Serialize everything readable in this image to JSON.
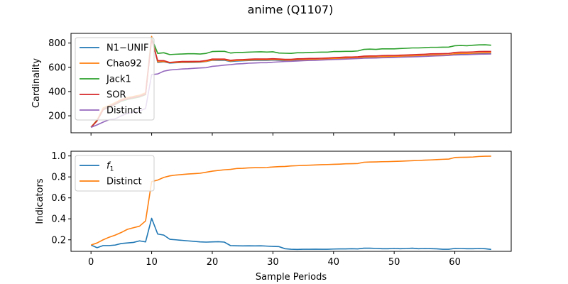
{
  "title": "anime (Q1107)",
  "chart_data": [
    {
      "type": "line",
      "ylabel": "Cardinality",
      "xlabel": "",
      "xlim": [
        -3.3,
        69.3
      ],
      "ylim": [
        60,
        880
      ],
      "xticks": [
        0,
        10,
        20,
        30,
        40,
        50,
        60
      ],
      "yticks": [
        200,
        400,
        600,
        800
      ],
      "show_xtick_labels": false,
      "grid": false,
      "legend": "top-left",
      "x": [
        0,
        1,
        2,
        3,
        4,
        5,
        6,
        7,
        8,
        9,
        10,
        11,
        12,
        13,
        14,
        15,
        16,
        17,
        18,
        19,
        20,
        21,
        22,
        23,
        24,
        25,
        26,
        27,
        28,
        29,
        30,
        31,
        32,
        33,
        34,
        35,
        36,
        37,
        38,
        39,
        40,
        41,
        42,
        43,
        44,
        45,
        46,
        47,
        48,
        49,
        50,
        51,
        52,
        53,
        54,
        55,
        56,
        57,
        58,
        59,
        60,
        61,
        62,
        63,
        64,
        65,
        66
      ],
      "series": [
        {
          "name": "N1−UNIF",
          "color": "#1f77b4",
          "values": [
            105,
            160,
            255,
            275,
            300,
            330,
            345,
            355,
            365,
            380,
            850,
            640,
            645,
            635,
            638,
            640,
            640,
            641,
            642,
            648,
            658,
            658,
            658,
            648,
            652,
            654,
            656,
            658,
            658,
            658,
            660,
            658,
            656,
            656,
            660,
            660,
            662,
            662,
            663,
            665,
            668,
            670,
            673,
            673,
            675,
            680,
            682,
            682,
            684,
            685,
            685,
            687,
            689,
            690,
            692,
            694,
            697,
            698,
            699,
            700,
            708,
            710,
            710,
            712,
            715,
            716,
            716
          ]
        },
        {
          "name": "Chao92",
          "color": "#ff7f0e",
          "values": [
            105,
            165,
            265,
            285,
            310,
            335,
            350,
            360,
            370,
            390,
            855,
            645,
            648,
            638,
            640,
            642,
            643,
            644,
            645,
            650,
            660,
            662,
            663,
            652,
            656,
            658,
            660,
            662,
            662,
            662,
            664,
            662,
            660,
            660,
            664,
            664,
            666,
            666,
            667,
            669,
            672,
            674,
            677,
            677,
            679,
            684,
            686,
            686,
            688,
            689,
            689,
            691,
            693,
            694,
            696,
            698,
            701,
            702,
            703,
            704,
            712,
            714,
            714,
            716,
            719,
            720,
            720
          ]
        },
        {
          "name": "Jack1",
          "color": "#2ca02c",
          "values": [
            105,
            160,
            250,
            270,
            295,
            320,
            335,
            345,
            355,
            375,
            840,
            715,
            720,
            705,
            708,
            710,
            712,
            712,
            710,
            715,
            730,
            732,
            732,
            718,
            722,
            723,
            725,
            727,
            728,
            726,
            728,
            718,
            716,
            715,
            720,
            720,
            722,
            724,
            725,
            725,
            730,
            730,
            732,
            732,
            735,
            748,
            750,
            748,
            752,
            752,
            752,
            755,
            757,
            760,
            760,
            762,
            765,
            765,
            766,
            767,
            778,
            780,
            778,
            782,
            785,
            786,
            782
          ]
        },
        {
          "name": "SOR",
          "color": "#d62728",
          "values": [
            105,
            158,
            250,
            272,
            298,
            325,
            340,
            350,
            360,
            378,
            830,
            655,
            655,
            640,
            645,
            648,
            648,
            649,
            650,
            656,
            668,
            668,
            668,
            658,
            662,
            664,
            667,
            669,
            669,
            669,
            671,
            669,
            666,
            666,
            670,
            671,
            673,
            673,
            675,
            677,
            680,
            682,
            685,
            685,
            687,
            692,
            694,
            694,
            697,
            698,
            698,
            700,
            702,
            704,
            706,
            708,
            711,
            712,
            713,
            714,
            723,
            725,
            725,
            727,
            730,
            731,
            731
          ]
        },
        {
          "name": "Distinct",
          "color": "#9467bd",
          "values": [
            105,
            125,
            148,
            168,
            175,
            200,
            220,
            230,
            240,
            260,
            540,
            545,
            568,
            578,
            582,
            586,
            588,
            592,
            595,
            597,
            608,
            612,
            618,
            622,
            628,
            630,
            634,
            636,
            638,
            638,
            642,
            645,
            648,
            650,
            652,
            655,
            657,
            658,
            660,
            662,
            664,
            666,
            668,
            670,
            672,
            675,
            676,
            677,
            679,
            680,
            681,
            683,
            685,
            686,
            688,
            690,
            692,
            694,
            696,
            698,
            702,
            703,
            704,
            706,
            708,
            709,
            710
          ]
        }
      ]
    },
    {
      "type": "line",
      "ylabel": "Indicators",
      "xlabel": "Sample Periods",
      "xlim": [
        -3.3,
        69.3
      ],
      "ylim": [
        0.09,
        1.045
      ],
      "xticks": [
        0,
        10,
        20,
        30,
        40,
        50,
        60
      ],
      "yticks": [
        0.2,
        0.4,
        0.6,
        0.8,
        1.0
      ],
      "ytick_labels": [
        "0.2",
        "0.4",
        "0.6",
        "0.8",
        "1.0"
      ],
      "show_xtick_labels": true,
      "grid": false,
      "legend": "top-left",
      "x": [
        0,
        1,
        2,
        3,
        4,
        5,
        6,
        7,
        8,
        9,
        10,
        11,
        12,
        13,
        14,
        15,
        16,
        17,
        18,
        19,
        20,
        21,
        22,
        23,
        24,
        25,
        26,
        27,
        28,
        29,
        30,
        31,
        32,
        33,
        34,
        35,
        36,
        37,
        38,
        39,
        40,
        41,
        42,
        43,
        44,
        45,
        46,
        47,
        48,
        49,
        50,
        51,
        52,
        53,
        54,
        55,
        56,
        57,
        58,
        59,
        60,
        61,
        62,
        63,
        64,
        65,
        66
      ],
      "series": [
        {
          "name": "f1",
          "name_base": "f",
          "name_sub": "1",
          "color": "#1f77b4",
          "values": [
            0.15,
            0.125,
            0.145,
            0.145,
            0.15,
            0.165,
            0.17,
            0.175,
            0.19,
            0.18,
            0.405,
            0.255,
            0.245,
            0.205,
            0.2,
            0.195,
            0.19,
            0.185,
            0.18,
            0.178,
            0.18,
            0.182,
            0.178,
            0.145,
            0.143,
            0.142,
            0.143,
            0.142,
            0.143,
            0.14,
            0.137,
            0.135,
            0.115,
            0.11,
            0.108,
            0.11,
            0.11,
            0.111,
            0.11,
            0.11,
            0.112,
            0.113,
            0.113,
            0.115,
            0.113,
            0.12,
            0.12,
            0.118,
            0.115,
            0.115,
            0.118,
            0.115,
            0.117,
            0.12,
            0.115,
            0.117,
            0.116,
            0.114,
            0.11,
            0.11,
            0.118,
            0.117,
            0.115,
            0.115,
            0.117,
            0.115,
            0.108
          ]
        },
        {
          "name": "Distinct",
          "color": "#ff7f0e",
          "values": [
            0.15,
            0.17,
            0.2,
            0.225,
            0.245,
            0.27,
            0.3,
            0.315,
            0.33,
            0.38,
            0.755,
            0.77,
            0.795,
            0.81,
            0.818,
            0.823,
            0.828,
            0.831,
            0.835,
            0.845,
            0.855,
            0.862,
            0.868,
            0.872,
            0.88,
            0.882,
            0.886,
            0.888,
            0.888,
            0.89,
            0.895,
            0.898,
            0.9,
            0.905,
            0.907,
            0.91,
            0.912,
            0.914,
            0.917,
            0.918,
            0.92,
            0.922,
            0.925,
            0.926,
            0.928,
            0.94,
            0.942,
            0.943,
            0.945,
            0.946,
            0.948,
            0.95,
            0.952,
            0.955,
            0.957,
            0.96,
            0.962,
            0.965,
            0.968,
            0.97,
            0.985,
            0.987,
            0.988,
            0.99,
            0.995,
            0.997,
            0.998
          ]
        }
      ]
    }
  ]
}
